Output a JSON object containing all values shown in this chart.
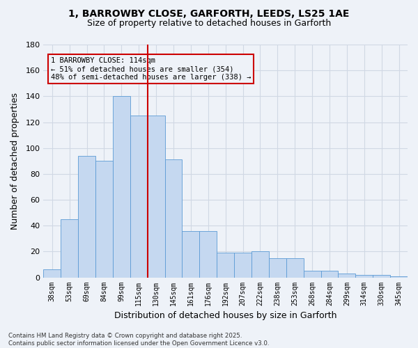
{
  "title_line1": "1, BARROWBY CLOSE, GARFORTH, LEEDS, LS25 1AE",
  "title_line2": "Size of property relative to detached houses in Garforth",
  "xlabel": "Distribution of detached houses by size in Garforth",
  "ylabel": "Number of detached properties",
  "categories": [
    "38sqm",
    "53sqm",
    "69sqm",
    "84sqm",
    "99sqm",
    "115sqm",
    "130sqm",
    "145sqm",
    "161sqm",
    "176sqm",
    "192sqm",
    "207sqm",
    "222sqm",
    "238sqm",
    "253sqm",
    "268sqm",
    "284sqm",
    "299sqm",
    "314sqm",
    "330sqm",
    "345sqm"
  ],
  "values": [
    6,
    45,
    94,
    90,
    140,
    125,
    125,
    91,
    36,
    36,
    19,
    19,
    20,
    15,
    15,
    5,
    5,
    3,
    2,
    2,
    1
  ],
  "bar_color": "#c5d8f0",
  "bar_edge_color": "#5b9bd5",
  "grid_color": "#d0d8e4",
  "background_color": "#eef2f8",
  "vline_index": 5,
  "vline_color": "#cc0000",
  "annotation_text": "1 BARROWBY CLOSE: 114sqm\n← 51% of detached houses are smaller (354)\n48% of semi-detached houses are larger (338) →",
  "annotation_box_color": "#cc0000",
  "ylim": [
    0,
    180
  ],
  "yticks": [
    0,
    20,
    40,
    60,
    80,
    100,
    120,
    140,
    160,
    180
  ],
  "footnote": "Contains HM Land Registry data © Crown copyright and database right 2025.\nContains public sector information licensed under the Open Government Licence v3.0."
}
